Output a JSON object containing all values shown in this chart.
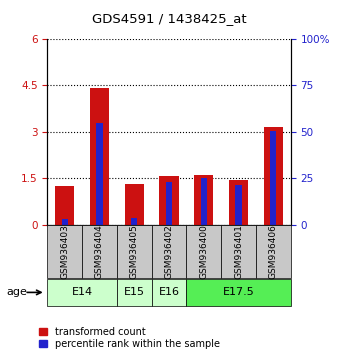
{
  "title": "GDS4591 / 1438425_at",
  "samples": [
    "GSM936403",
    "GSM936404",
    "GSM936405",
    "GSM936402",
    "GSM936400",
    "GSM936401",
    "GSM936406"
  ],
  "transformed_count": [
    1.25,
    4.42,
    1.32,
    1.58,
    1.62,
    1.45,
    3.15
  ],
  "percentile_rank_scaled": [
    0.18,
    3.28,
    0.22,
    1.38,
    1.5,
    1.28,
    3.02
  ],
  "ylim_left": [
    0,
    6
  ],
  "ylim_right": [
    0,
    100
  ],
  "yticks_left": [
    0,
    1.5,
    3.0,
    4.5,
    6.0
  ],
  "yticks_right": [
    0,
    25,
    50,
    75,
    100
  ],
  "bar_color_red": "#cc1111",
  "bar_color_blue": "#2222cc",
  "red_bar_width": 0.55,
  "blue_bar_width": 0.18,
  "tick_label_color_left": "#cc1111",
  "tick_label_color_right": "#2222cc",
  "legend_red": "transformed count",
  "legend_blue": "percentile rank within the sample",
  "sample_bg_color": "#c8c8c8",
  "age_groups": [
    {
      "label": "E14",
      "start": 0,
      "end": 1,
      "color": "#ccffcc"
    },
    {
      "label": "E15",
      "start": 2,
      "end": 2,
      "color": "#ccffcc"
    },
    {
      "label": "E16",
      "start": 3,
      "end": 3,
      "color": "#ccffcc"
    },
    {
      "label": "E17.5",
      "start": 4,
      "end": 6,
      "color": "#55ee55"
    }
  ]
}
